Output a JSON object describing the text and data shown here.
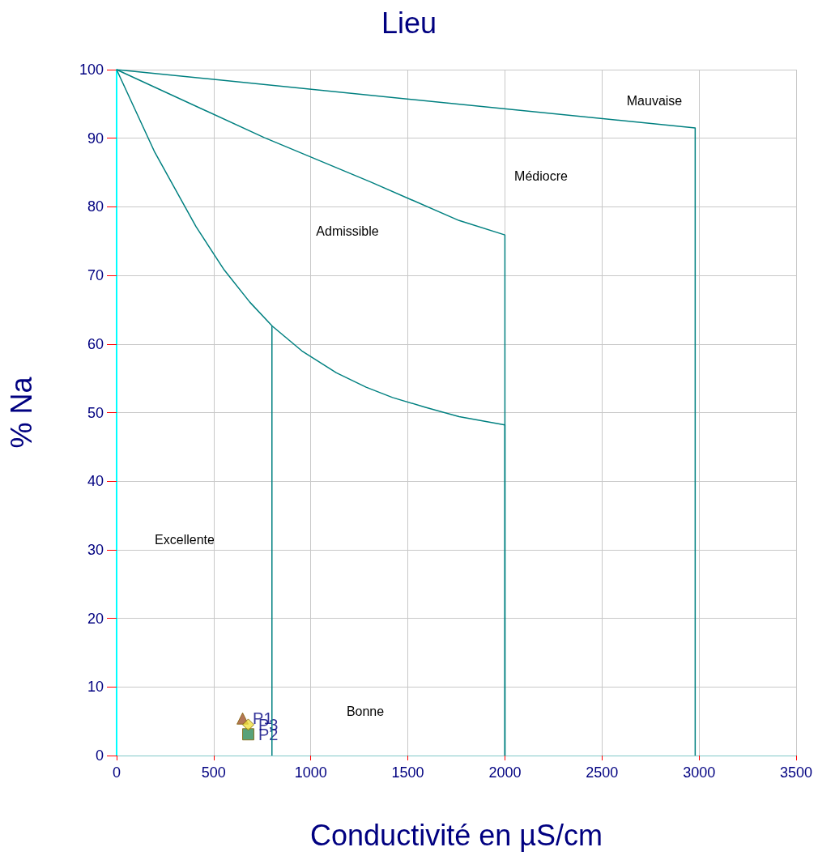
{
  "chart_data": {
    "type": "line",
    "title": "Lieu",
    "xlabel": "Conductivité en µS/cm",
    "ylabel": "% Na",
    "xlim": [
      0,
      3500
    ],
    "xticks": [
      0,
      500,
      1000,
      1500,
      2000,
      2500,
      3000,
      3500
    ],
    "ylim": [
      0,
      100
    ],
    "yticks": [
      0,
      10,
      20,
      30,
      40,
      50,
      60,
      70,
      80,
      90,
      100
    ],
    "grid": true,
    "legend": false,
    "marker": "none",
    "line_style": "solid",
    "series": [
      {
        "color": "#008080",
        "x": [
          0,
          194,
          409,
          554,
          686,
          802,
          954,
          1132,
          1285,
          1421,
          1587,
          1764,
          2000,
          2000
        ],
        "values": [
          100,
          88.1,
          77.1,
          70.8,
          66.1,
          62.6,
          59.0,
          55.8,
          53.7,
          52.2,
          50.8,
          49.4,
          48.2,
          0
        ]
      },
      {
        "color": "#008080",
        "x": [
          800,
          800
        ],
        "values": [
          62.6,
          0
        ]
      },
      {
        "color": "#008080",
        "x": [
          0,
          760,
          1310,
          1764,
          2000,
          2000
        ],
        "values": [
          100,
          90.1,
          83.6,
          78.0,
          75.9,
          0
        ]
      },
      {
        "color": "#008080",
        "x": [
          0,
          2980,
          2980
        ],
        "values": [
          100,
          91.5,
          0
        ]
      },
      {
        "type": "scatter",
        "name": "P1",
        "color": "#a0522d",
        "marker": "triangle",
        "x": [
          649
        ],
        "values": [
          5.4
        ]
      },
      {
        "type": "scatter",
        "name": "P2",
        "color": "#2e8b57",
        "marker": "square",
        "x": [
          678
        ],
        "values": [
          3.1
        ]
      },
      {
        "type": "scatter",
        "name": "P3",
        "color": "#f0e040",
        "marker": "diamond",
        "x": [
          678
        ],
        "values": [
          4.5
        ]
      }
    ],
    "annotations": [
      "Excellente",
      "Bonne",
      "Admissible",
      "Médiocre",
      "Mauvaise"
    ]
  }
}
